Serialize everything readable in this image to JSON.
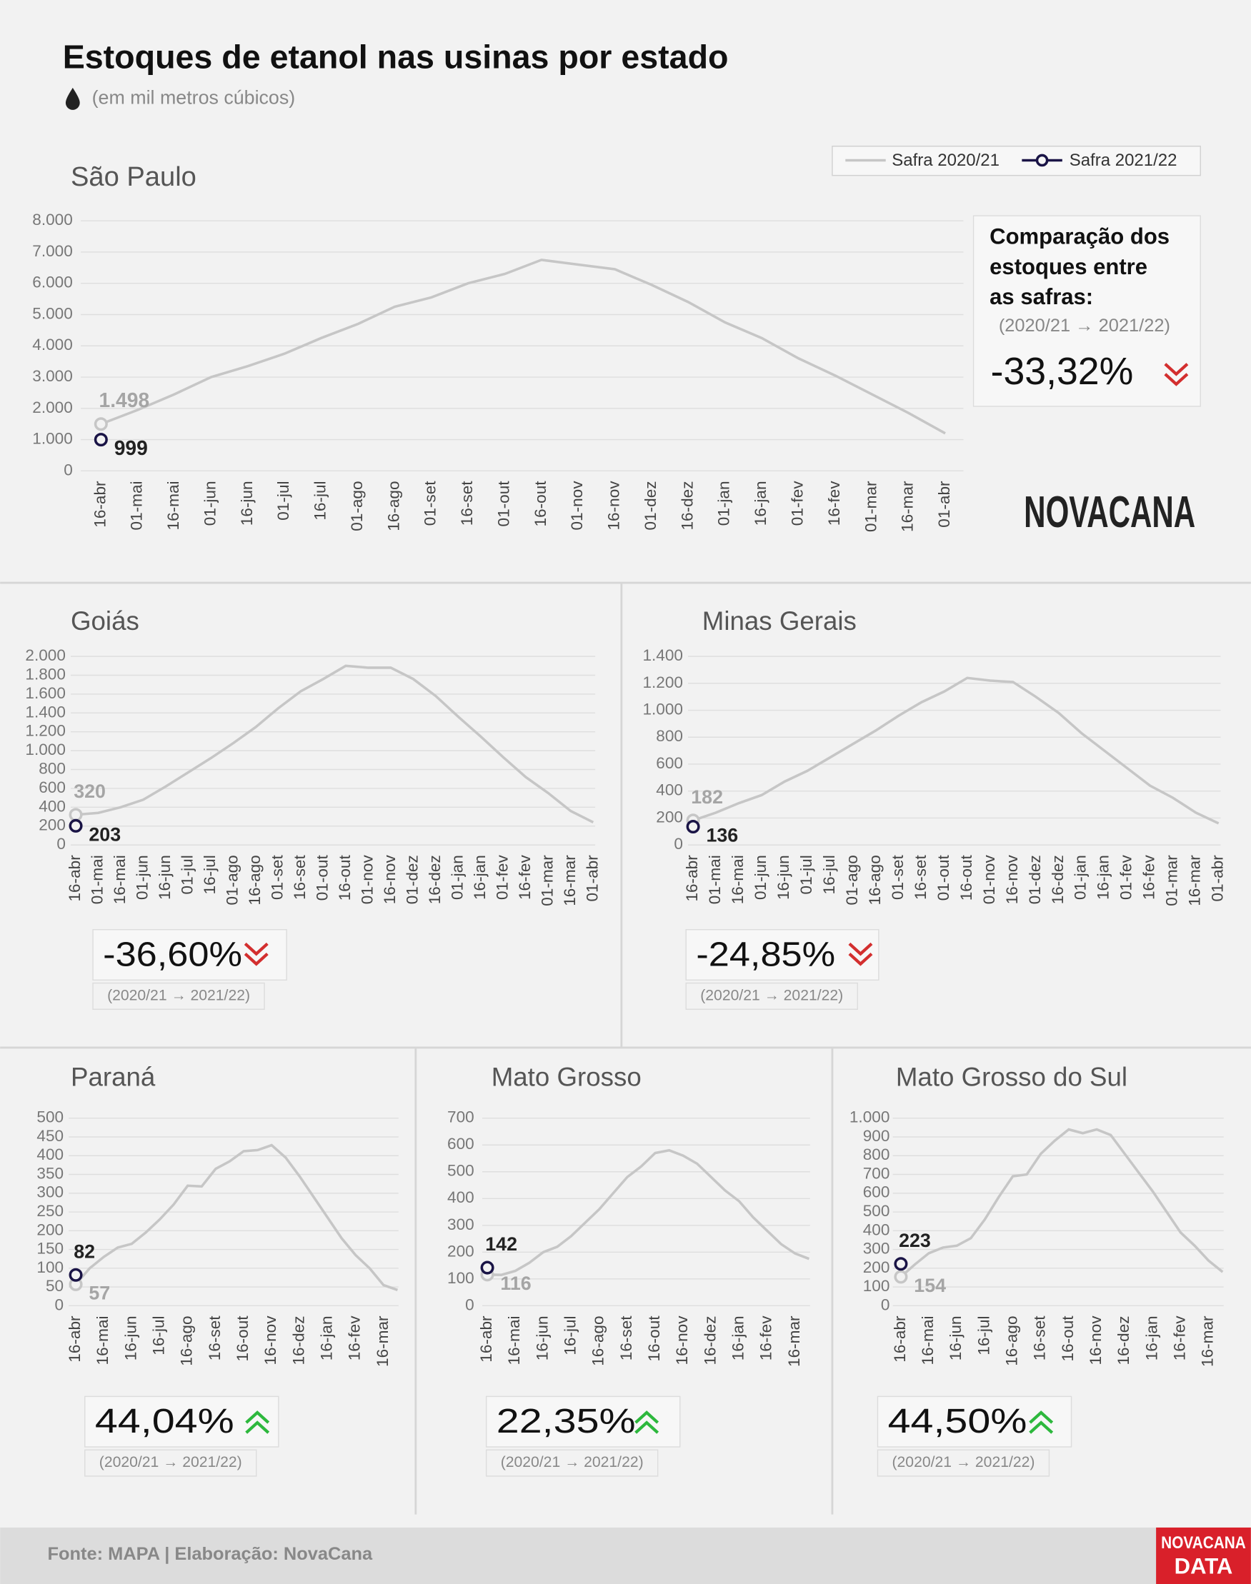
{
  "header": {
    "title": "Estoques de etanol nas usinas por estado",
    "subtitle": "(em mil metros cúbicos)"
  },
  "footer": {
    "source": "Fonte: MAPA  | Elaboração: NovaCana",
    "logo": "NOVACANA",
    "logo_data": [
      "NOVACANA",
      "DATA"
    ]
  },
  "chart_data": [
    {
      "type": "line",
      "title": "São Paulo",
      "categories": [
        "16-abr",
        "01-mai",
        "16-mai",
        "01-jun",
        "16-jun",
        "01-jul",
        "16-jul",
        "01-ago",
        "16-ago",
        "01-set",
        "16-set",
        "01-out",
        "16-out",
        "01-nov",
        "16-nov",
        "01-dez",
        "16-dez",
        "01-jan",
        "16-jan",
        "01-fev",
        "16-fev",
        "01-mar",
        "16-mar",
        "01-abr"
      ],
      "series": [
        {
          "name": "Safra 2020/21",
          "color": "#c6c6c6",
          "values": [
            1498,
            1950,
            2450,
            3000,
            3350,
            3750,
            4250,
            4700,
            5250,
            5550,
            6000,
            6300,
            6750,
            6600,
            6450,
            5950,
            5400,
            4750,
            4250,
            3600,
            3050,
            2450,
            1850,
            1200
          ],
          "value_labels": [
            "1.498"
          ]
        },
        {
          "name": "Safra 2021/22",
          "color": "#1a1446",
          "values": [
            999,
            null,
            null,
            null,
            null,
            null,
            null,
            null,
            null,
            null,
            null,
            null,
            null,
            null,
            null,
            null,
            null,
            null,
            null,
            null,
            null,
            null,
            null,
            null
          ]
        }
      ],
      "ylim": [
        0,
        8000
      ],
      "yticks": [
        0,
        {
          "value": 1000,
          "label": "1.000"
        },
        {
          "value": 2000,
          "label": "2.000"
        },
        {
          "value": 3000,
          "label": "3.000"
        },
        {
          "value": 4000,
          "label": "4.000"
        },
        {
          "value": 5000,
          "label": "5.000"
        },
        {
          "value": 6000,
          "label": "6.000"
        },
        {
          "value": 7000,
          "label": "7.000"
        },
        {
          "value": 8000,
          "label": "8.000"
        }
      ],
      "grid": true,
      "comparison": {
        "heading": [
          "Comparação dos",
          "estoques entre",
          "as safras:"
        ],
        "period": "(2020/21 → 2021/22)",
        "value": -33.32,
        "label": "-33,32%"
      }
    },
    {
      "type": "line",
      "title": "Goiás",
      "categories": [
        "16-abr",
        "01-mai",
        "16-mai",
        "01-jun",
        "16-jun",
        "01-jul",
        "16-jul",
        "01-ago",
        "16-ago",
        "01-set",
        "16-set",
        "01-out",
        "16-out",
        "01-nov",
        "16-nov",
        "01-dez",
        "16-dez",
        "01-jan",
        "16-jan",
        "01-fev",
        "16-fev",
        "01-mar",
        "16-mar",
        "01-abr"
      ],
      "series": [
        {
          "color": "#c6c6c6",
          "values": [
            320,
            340,
            400,
            480,
            620,
            770,
            920,
            1080,
            1250,
            1450,
            1630,
            1760,
            1900,
            1880,
            1880,
            1760,
            1580,
            1360,
            1150,
            930,
            720,
            550,
            360,
            240
          ]
        },
        {
          "color": "#1a1446",
          "values": [
            203,
            null,
            null,
            null,
            null,
            null,
            null,
            null,
            null,
            null,
            null,
            null,
            null,
            null,
            null,
            null,
            null,
            null,
            null,
            null,
            null,
            null,
            null,
            null
          ]
        }
      ],
      "ylim": [
        0,
        2000
      ],
      "yticks": [
        0,
        200,
        400,
        600,
        800,
        {
          "value": 1000,
          "label": "1.000"
        },
        {
          "value": 1200,
          "label": "1.200"
        },
        {
          "value": 1400,
          "label": "1.400"
        },
        {
          "value": 1600,
          "label": "1.600"
        },
        {
          "value": 1800,
          "label": "1.800"
        },
        {
          "value": 2000,
          "label": "2.000"
        }
      ],
      "grid": true,
      "comparison": {
        "period": "(2020/21 → 2021/22)",
        "value": -36.6,
        "label": "-36,60%"
      }
    },
    {
      "type": "line",
      "title": "Minas Gerais",
      "categories": [
        "16-abr",
        "01-mai",
        "16-mai",
        "01-jun",
        "16-jun",
        "01-jul",
        "16-jul",
        "01-ago",
        "16-ago",
        "01-set",
        "16-set",
        "01-out",
        "16-out",
        "01-nov",
        "16-nov",
        "01-dez",
        "16-dez",
        "01-jan",
        "16-jan",
        "01-fev",
        "16-fev",
        "01-mar",
        "16-mar",
        "01-abr"
      ],
      "series": [
        {
          "color": "#c6c6c6",
          "values": [
            182,
            240,
            310,
            370,
            470,
            550,
            650,
            750,
            850,
            960,
            1060,
            1140,
            1240,
            1220,
            1210,
            1100,
            980,
            830,
            700,
            570,
            440,
            350,
            240,
            160
          ]
        },
        {
          "color": "#1a1446",
          "values": [
            136,
            null,
            null,
            null,
            null,
            null,
            null,
            null,
            null,
            null,
            null,
            null,
            null,
            null,
            null,
            null,
            null,
            null,
            null,
            null,
            null,
            null,
            null,
            null
          ]
        }
      ],
      "ylim": [
        0,
        1400
      ],
      "yticks": [
        0,
        200,
        400,
        600,
        800,
        {
          "value": 1000,
          "label": "1.000"
        },
        {
          "value": 1200,
          "label": "1.200"
        },
        {
          "value": 1400,
          "label": "1.400"
        }
      ],
      "grid": true,
      "comparison": {
        "period": "(2020/21 → 2021/22)",
        "value": -24.85,
        "label": "-24,85%"
      }
    },
    {
      "type": "line",
      "title": "Paraná",
      "categories": [
        "16-abr",
        null,
        "16-mai",
        null,
        "16-jun",
        null,
        "16-jul",
        null,
        "16-ago",
        null,
        "16-set",
        null,
        "16-out",
        null,
        "16-nov",
        null,
        "16-dez",
        null,
        "16-jan",
        null,
        "16-fev",
        null,
        "16-mar",
        null
      ],
      "series": [
        {
          "color": "#c6c6c6",
          "values": [
            57,
            100,
            130,
            155,
            165,
            195,
            230,
            270,
            320,
            318,
            365,
            385,
            412,
            415,
            428,
            395,
            345,
            290,
            235,
            180,
            135,
            100,
            55,
            42
          ]
        },
        {
          "color": "#1a1446",
          "values": [
            82,
            null,
            null,
            null,
            null,
            null,
            null,
            null,
            null,
            null,
            null,
            null,
            null,
            null,
            null,
            null,
            null,
            null,
            null,
            null,
            null,
            null,
            null,
            null
          ]
        }
      ],
      "ylim": [
        0,
        500
      ],
      "yticks": [
        0,
        50,
        100,
        150,
        200,
        250,
        300,
        350,
        400,
        450,
        500
      ],
      "grid": true,
      "comparison": {
        "period": "(2020/21 → 2021/22)",
        "value": 44.04,
        "label": "44,04%"
      }
    },
    {
      "type": "line",
      "title": "Mato Grosso",
      "categories": [
        "16-abr",
        null,
        "16-mai",
        null,
        "16-jun",
        null,
        "16-jul",
        null,
        "16-ago",
        null,
        "16-set",
        null,
        "16-out",
        null,
        "16-nov",
        null,
        "16-dez",
        null,
        "16-jan",
        null,
        "16-fev",
        null,
        "16-mar",
        null
      ],
      "series": [
        {
          "color": "#c6c6c6",
          "values": [
            116,
            115,
            130,
            160,
            200,
            220,
            260,
            310,
            360,
            420,
            480,
            520,
            570,
            580,
            560,
            530,
            480,
            430,
            390,
            330,
            280,
            230,
            195,
            175
          ]
        },
        {
          "color": "#1a1446",
          "values": [
            142,
            null,
            null,
            null,
            null,
            null,
            null,
            null,
            null,
            null,
            null,
            null,
            null,
            null,
            null,
            null,
            null,
            null,
            null,
            null,
            null,
            null,
            null,
            null
          ]
        }
      ],
      "ylim": [
        0,
        700
      ],
      "yticks": [
        0,
        100,
        200,
        300,
        400,
        500,
        600,
        700
      ],
      "grid": true,
      "comparison": {
        "period": "(2020/21 → 2021/22)",
        "value": 22.35,
        "label": "22,35%"
      }
    },
    {
      "type": "line",
      "title": "Mato Grosso do Sul",
      "categories": [
        "16-abr",
        null,
        "16-mai",
        null,
        "16-jun",
        null,
        "16-jul",
        null,
        "16-ago",
        null,
        "16-set",
        null,
        "16-out",
        null,
        "16-nov",
        null,
        "16-dez",
        null,
        "16-jan",
        null,
        "16-fev",
        null,
        "16-mar",
        null
      ],
      "series": [
        {
          "color": "#c6c6c6",
          "values": [
            154,
            220,
            280,
            310,
            320,
            360,
            460,
            580,
            690,
            700,
            810,
            880,
            940,
            920,
            940,
            910,
            810,
            710,
            610,
            500,
            390,
            320,
            240,
            180
          ]
        },
        {
          "color": "#1a1446",
          "values": [
            223,
            null,
            null,
            null,
            null,
            null,
            null,
            null,
            null,
            null,
            null,
            null,
            null,
            null,
            null,
            null,
            null,
            null,
            null,
            null,
            null,
            null,
            null,
            null
          ]
        }
      ],
      "ylim": [
        0,
        1000
      ],
      "yticks": [
        0,
        100,
        200,
        300,
        400,
        500,
        600,
        700,
        800,
        900,
        {
          "value": 1000,
          "label": "1.000"
        }
      ],
      "grid": true,
      "comparison": {
        "period": "(2020/21 → 2021/22)",
        "value": 44.5,
        "label": "44,50%"
      }
    }
  ]
}
